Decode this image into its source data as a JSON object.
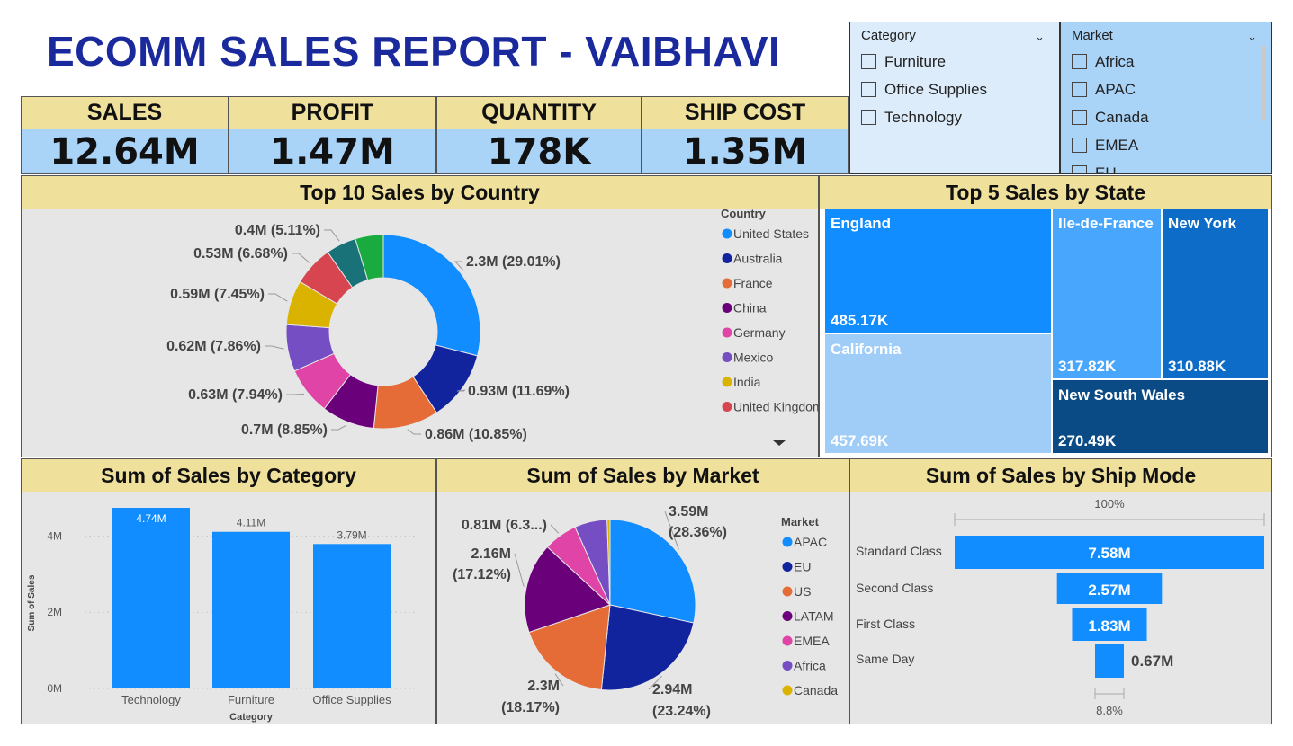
{
  "title": "ECOMM SALES REPORT - VAIBHAVI",
  "kpis": [
    {
      "label": "SALES",
      "value": "12.64M"
    },
    {
      "label": "PROFIT",
      "value": "1.47M"
    },
    {
      "label": "QUANTITY",
      "value": "178K"
    },
    {
      "label": "SHIP COST",
      "value": "1.35M"
    }
  ],
  "slicers": {
    "category": {
      "title": "Category",
      "options": [
        "Furniture",
        "Office Supplies",
        "Technology"
      ],
      "bg": "#dcecfb"
    },
    "market": {
      "title": "Market",
      "options": [
        "Africa",
        "APAC",
        "Canada",
        "EMEA",
        "EU"
      ],
      "bg": "#a9d3f7"
    }
  },
  "colors": {
    "header": "#efe09c",
    "panel_bg": "#e6e6e6",
    "accent": "#118dff",
    "title": "#1a2a9c"
  },
  "charts": {
    "country": {
      "title": "Top 10 Sales by Country",
      "legend_title": "Country",
      "chart_data": {
        "type": "pie",
        "donut": true,
        "legend_position": "right",
        "slices": [
          {
            "name": "United States",
            "value": 2.3,
            "label": "2.3M (29.01%)",
            "color": "#118dff"
          },
          {
            "name": "Australia",
            "value": 0.93,
            "label": "0.93M (11.69%)",
            "color": "#12239e"
          },
          {
            "name": "France",
            "value": 0.86,
            "label": "0.86M (10.85%)",
            "color": "#e66c37"
          },
          {
            "name": "China",
            "value": 0.7,
            "label": "0.7M (8.85%)",
            "color": "#6b007b"
          },
          {
            "name": "Germany",
            "value": 0.63,
            "label": "0.63M (7.94%)",
            "color": "#e044a7"
          },
          {
            "name": "Mexico",
            "value": 0.62,
            "label": "0.62M (7.86%)",
            "color": "#744ec2"
          },
          {
            "name": "India",
            "value": 0.59,
            "label": "0.59M (7.45%)",
            "color": "#d9b300"
          },
          {
            "name": "United Kingdom",
            "value": 0.53,
            "label": "0.53M (6.68%)",
            "color": "#d64550"
          },
          {
            "name": "",
            "value": 0.4,
            "label": "0.4M (5.11%)",
            "color": "#197278"
          },
          {
            "name": "",
            "value": 0.37,
            "label": "",
            "color": "#1aab40"
          }
        ]
      }
    },
    "state": {
      "title": "Top 5 Sales by State",
      "chart_data": {
        "type": "treemap",
        "items": [
          {
            "name": "England",
            "value": "485.17K",
            "color": "#118dff"
          },
          {
            "name": "California",
            "value": "457.69K",
            "color": "#a0cdf8"
          },
          {
            "name": "Ile-de-France",
            "value": "317.82K",
            "color": "#49a6fd"
          },
          {
            "name": "New York",
            "value": "310.88K",
            "color": "#0d6cc7"
          },
          {
            "name": "New South Wales",
            "value": "270.49K",
            "color": "#0a4a85"
          }
        ]
      }
    },
    "category": {
      "title": "Sum of Sales by Category",
      "chart_data": {
        "type": "bar",
        "categories": [
          "Technology",
          "Furniture",
          "Office Supplies"
        ],
        "values": [
          4.74,
          4.11,
          3.79
        ],
        "data_labels": [
          "4.74M",
          "4.11M",
          "3.79M"
        ],
        "xlabel": "Category",
        "ylabel": "Sum of Sales",
        "yticks": [
          "0M",
          "2M",
          "4M"
        ],
        "ylim": [
          0,
          5
        ]
      }
    },
    "market": {
      "title": "Sum of Sales by Market",
      "legend_title": "Market",
      "chart_data": {
        "type": "pie",
        "legend_position": "right",
        "slices": [
          {
            "name": "APAC",
            "value": 3.59,
            "label_value": "3.59M",
            "label_pct": "(28.36%)",
            "color": "#118dff"
          },
          {
            "name": "EU",
            "value": 2.94,
            "label_value": "2.94M",
            "label_pct": "(23.24%)",
            "color": "#12239e"
          },
          {
            "name": "US",
            "value": 2.3,
            "label_value": "2.3M",
            "label_pct": "(18.17%)",
            "color": "#e66c37"
          },
          {
            "name": "LATAM",
            "value": 2.16,
            "label_value": "2.16M",
            "label_pct": "(17.12%)",
            "color": "#6b007b"
          },
          {
            "name": "EMEA",
            "value": 0.81,
            "label_value": "0.81M (6.3...)",
            "label_pct": "",
            "color": "#e044a7"
          },
          {
            "name": "Africa",
            "value": 0.78,
            "label_value": "",
            "label_pct": "",
            "color": "#744ec2"
          },
          {
            "name": "Canada",
            "value": 0.07,
            "label_value": "",
            "label_pct": "",
            "color": "#d9b300"
          }
        ]
      }
    },
    "shipmode": {
      "title": "Sum of Sales by Ship Mode",
      "chart_data": {
        "type": "funnel",
        "categories": [
          "Standard Class",
          "Second Class",
          "First Class",
          "Same Day"
        ],
        "values": [
          7.58,
          2.57,
          1.83,
          0.67
        ],
        "data_labels": [
          "7.58M",
          "2.57M",
          "1.83M",
          "0.67M"
        ],
        "top_pct": "100%",
        "bottom_pct": "8.8%"
      }
    }
  }
}
